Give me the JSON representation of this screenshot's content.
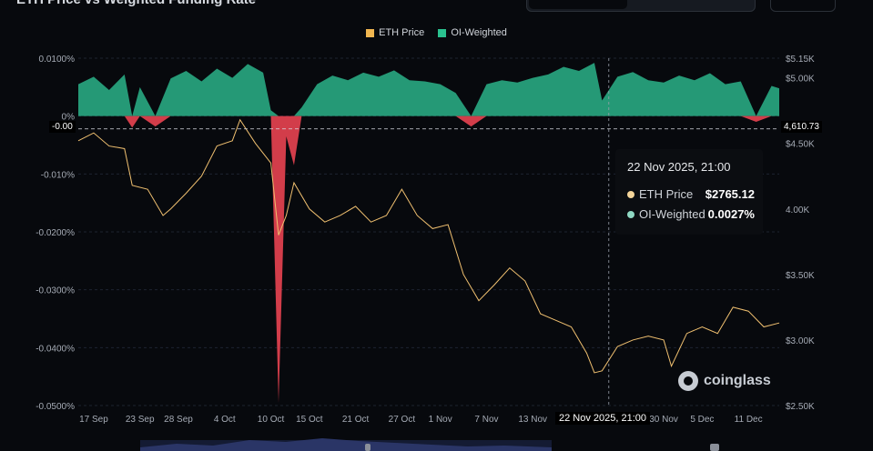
{
  "header": {
    "title": "ETH Price vs Weighted Funding Rate"
  },
  "legend": [
    {
      "label": "ETH Price",
      "color": "#f0b650"
    },
    {
      "label": "OI-Weighted",
      "color": "#2ac28f"
    }
  ],
  "tooltip": {
    "title": "22 Nov 2025, 21:00",
    "rows": [
      {
        "label": "ETH Price",
        "value": "$2765.12",
        "color": "#f4d59a"
      },
      {
        "label": "OI-Weighted",
        "value": "0.0027%",
        "color": "#8fd8c3"
      }
    ]
  },
  "crosshair_label": "22 Nov 2025, 21:00",
  "price_tag": "4,610.73",
  "zero_tag": "-0.00",
  "watermark": "coinglass",
  "chart_data": {
    "type": "line",
    "x_ticks": [
      "17 Sep",
      "23 Sep",
      "28 Sep",
      "4 Oct",
      "10 Oct",
      "15 Oct",
      "21 Oct",
      "27 Oct",
      "1 Nov",
      "7 Nov",
      "13 Nov",
      "22 Nov 2025, 21:00",
      "30 Nov",
      "5 Dec",
      "11 Dec"
    ],
    "x_range": [
      "2025-09-15",
      "2025-12-15"
    ],
    "y_left": {
      "ticks": [
        "0.0100%",
        "0%",
        "-0.010%",
        "-0.0200%",
        "-0.0300%",
        "-0.0400%",
        "-0.0500%"
      ],
      "range": [
        -0.05,
        0.01
      ],
      "unit": "%"
    },
    "y_right": {
      "ticks": [
        "$5.15K",
        "$5.00K",
        "$4.50K",
        "4.00K",
        "$3.50K",
        "$3.00K",
        "$2.50K"
      ],
      "tick_values": [
        5150,
        5000,
        4500,
        4000,
        3500,
        3000,
        2500
      ]
    },
    "series": [
      {
        "name": "ETH Price",
        "axis": "right",
        "color": "#f0c070",
        "points": [
          [
            "2025-09-15",
            4520
          ],
          [
            "2025-09-17",
            4580
          ],
          [
            "2025-09-19",
            4480
          ],
          [
            "2025-09-21",
            4460
          ],
          [
            "2025-09-22",
            4180
          ],
          [
            "2025-09-24",
            4150
          ],
          [
            "2025-09-26",
            3950
          ],
          [
            "2025-09-27",
            4000
          ],
          [
            "2025-09-29",
            4120
          ],
          [
            "2025-10-01",
            4250
          ],
          [
            "2025-10-03",
            4480
          ],
          [
            "2025-10-05",
            4520
          ],
          [
            "2025-10-06",
            4680
          ],
          [
            "2025-10-08",
            4500
          ],
          [
            "2025-10-10",
            4350
          ],
          [
            "2025-10-11",
            3800
          ],
          [
            "2025-10-12",
            3950
          ],
          [
            "2025-10-13",
            4200
          ],
          [
            "2025-10-15",
            4000
          ],
          [
            "2025-10-17",
            3900
          ],
          [
            "2025-10-19",
            3950
          ],
          [
            "2025-10-21",
            4020
          ],
          [
            "2025-10-23",
            3900
          ],
          [
            "2025-10-25",
            3950
          ],
          [
            "2025-10-27",
            4150
          ],
          [
            "2025-10-29",
            3950
          ],
          [
            "2025-10-31",
            3850
          ],
          [
            "2025-11-02",
            3880
          ],
          [
            "2025-11-04",
            3500
          ],
          [
            "2025-11-06",
            3300
          ],
          [
            "2025-11-08",
            3420
          ],
          [
            "2025-11-10",
            3550
          ],
          [
            "2025-11-12",
            3450
          ],
          [
            "2025-11-14",
            3200
          ],
          [
            "2025-11-16",
            3150
          ],
          [
            "2025-11-18",
            3100
          ],
          [
            "2025-11-20",
            2900
          ],
          [
            "2025-11-21",
            2750
          ],
          [
            "2025-11-22",
            2765
          ],
          [
            "2025-11-24",
            2950
          ],
          [
            "2025-11-26",
            3000
          ],
          [
            "2025-11-28",
            3030
          ],
          [
            "2025-11-30",
            3000
          ],
          [
            "2025-12-01",
            2800
          ],
          [
            "2025-12-03",
            3050
          ],
          [
            "2025-12-05",
            3100
          ],
          [
            "2025-12-07",
            3050
          ],
          [
            "2025-12-09",
            3250
          ],
          [
            "2025-12-11",
            3220
          ],
          [
            "2025-12-13",
            3100
          ],
          [
            "2025-12-15",
            3130
          ]
        ]
      },
      {
        "name": "OI-Weighted",
        "axis": "left",
        "color_positive": "#2ab38a",
        "color_negative": "#d23d4a",
        "points": [
          [
            "2025-09-15",
            0.0055
          ],
          [
            "2025-09-17",
            0.0068
          ],
          [
            "2025-09-19",
            0.0045
          ],
          [
            "2025-09-21",
            0.0072
          ],
          [
            "2025-09-22",
            -0.002
          ],
          [
            "2025-09-23",
            0.005
          ],
          [
            "2025-09-25",
            -0.0018
          ],
          [
            "2025-09-27",
            0.0065
          ],
          [
            "2025-09-29",
            0.0078
          ],
          [
            "2025-10-01",
            0.006
          ],
          [
            "2025-10-03",
            0.0082
          ],
          [
            "2025-10-05",
            0.0066
          ],
          [
            "2025-10-07",
            0.009
          ],
          [
            "2025-10-09",
            0.0075
          ],
          [
            "2025-10-10",
            0.001
          ],
          [
            "2025-10-11",
            -0.0495
          ],
          [
            "2025-10-12",
            -0.0035
          ],
          [
            "2025-10-13",
            -0.0085
          ],
          [
            "2025-10-14",
            0.0015
          ],
          [
            "2025-10-16",
            0.0055
          ],
          [
            "2025-10-18",
            0.007
          ],
          [
            "2025-10-20",
            0.0062
          ],
          [
            "2025-10-22",
            0.0075
          ],
          [
            "2025-10-24",
            0.0068
          ],
          [
            "2025-10-26",
            0.0079
          ],
          [
            "2025-10-28",
            0.0062
          ],
          [
            "2025-10-30",
            0.006
          ],
          [
            "2025-11-01",
            0.0055
          ],
          [
            "2025-11-03",
            0.004
          ],
          [
            "2025-11-05",
            -0.0018
          ],
          [
            "2025-11-07",
            0.0055
          ],
          [
            "2025-11-09",
            0.0062
          ],
          [
            "2025-11-11",
            0.0058
          ],
          [
            "2025-11-13",
            0.0066
          ],
          [
            "2025-11-15",
            0.0072
          ],
          [
            "2025-11-17",
            0.0085
          ],
          [
            "2025-11-19",
            0.0078
          ],
          [
            "2025-11-21",
            0.0092
          ],
          [
            "2025-11-22",
            0.0027
          ],
          [
            "2025-11-24",
            0.0068
          ],
          [
            "2025-11-26",
            0.0076
          ],
          [
            "2025-11-28",
            0.0062
          ],
          [
            "2025-11-30",
            0.0058
          ],
          [
            "2025-12-02",
            0.007
          ],
          [
            "2025-12-04",
            0.0062
          ],
          [
            "2025-12-06",
            0.0074
          ],
          [
            "2025-12-08",
            0.0055
          ],
          [
            "2025-12-10",
            0.006
          ],
          [
            "2025-12-12",
            -0.001
          ],
          [
            "2025-12-14",
            0.0052
          ],
          [
            "2025-12-15",
            0.0048
          ]
        ]
      }
    ],
    "crosshair_x": "2025-11-22T21:00",
    "price_marker": 4610.73,
    "grid": true,
    "legend_position": "top-center"
  }
}
